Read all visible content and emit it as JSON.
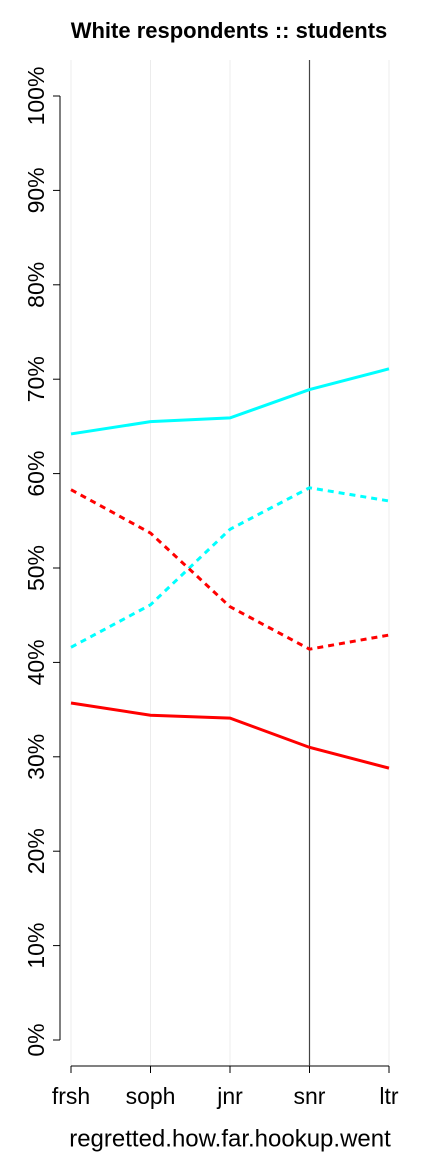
{
  "chart_data": {
    "type": "line",
    "title": "White respondents :: students",
    "x_label": "regretted.how.far.hookup.went",
    "categories": [
      "frsh",
      "soph",
      "jnr",
      "snr",
      "ltr"
    ],
    "series": [
      {
        "color": "#00ffff",
        "dashed": false,
        "values": [
          64.2,
          65.5,
          65.9,
          68.9,
          71.1
        ]
      },
      {
        "color": "#00ffff",
        "dashed": true,
        "values": [
          41.6,
          46.1,
          54.1,
          58.5,
          57.1
        ]
      },
      {
        "color": "#ff0000",
        "dashed": true,
        "values": [
          58.3,
          53.7,
          45.9,
          41.4,
          42.9
        ]
      },
      {
        "color": "#ff0000",
        "dashed": false,
        "values": [
          35.7,
          34.4,
          34.1,
          31.0,
          28.8
        ]
      }
    ],
    "ylim": [
      0,
      100
    ],
    "yticks": [
      {
        "value": 0,
        "label": "0%"
      },
      {
        "value": 10,
        "label": "10%"
      },
      {
        "value": 20,
        "label": "20%"
      },
      {
        "value": 30,
        "label": "30%"
      },
      {
        "value": 40,
        "label": "40%"
      },
      {
        "value": 50,
        "label": "50%"
      },
      {
        "value": 60,
        "label": "60%"
      },
      {
        "value": 70,
        "label": "70%"
      },
      {
        "value": 80,
        "label": "80%"
      },
      {
        "value": 90,
        "label": "90%"
      },
      {
        "value": 100,
        "label": "100%"
      }
    ],
    "grid": true,
    "vline": "snr"
  }
}
